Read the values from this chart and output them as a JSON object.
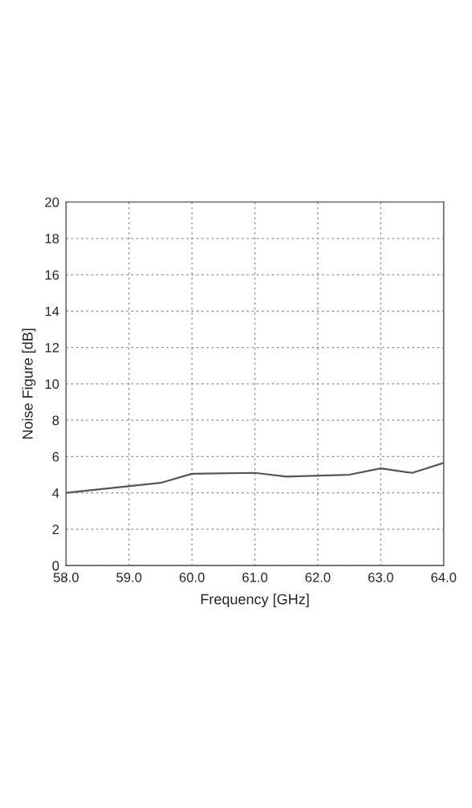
{
  "chart_data": {
    "type": "line",
    "xlabel": "Frequency [GHz]",
    "ylabel": "Noise Figure [dB]",
    "x": [
      58.0,
      59.5,
      60.0,
      61.0,
      61.5,
      62.5,
      63.0,
      63.5,
      64.0
    ],
    "series": [
      {
        "color": "#555555",
        "values": [
          4.0,
          4.55,
          5.05,
          5.1,
          4.9,
          5.0,
          5.35,
          5.1,
          5.65
        ]
      }
    ],
    "xlim": [
      58.0,
      64.0
    ],
    "xticks": [
      {
        "value": 58,
        "label": "58.0"
      },
      {
        "value": 59,
        "label": "59.0"
      },
      {
        "value": 60,
        "label": "60.0"
      },
      {
        "value": 61,
        "label": "61.0"
      },
      {
        "value": 62,
        "label": "62.0"
      },
      {
        "value": 63,
        "label": "63.0"
      },
      {
        "value": 64,
        "label": "64.0"
      }
    ],
    "ylim": [
      0,
      20
    ],
    "yticks": [
      0,
      2,
      4,
      6,
      8,
      10,
      12,
      14,
      16,
      18,
      20
    ],
    "grid": true,
    "line_style": "solid",
    "marker": "none",
    "legend": false
  }
}
